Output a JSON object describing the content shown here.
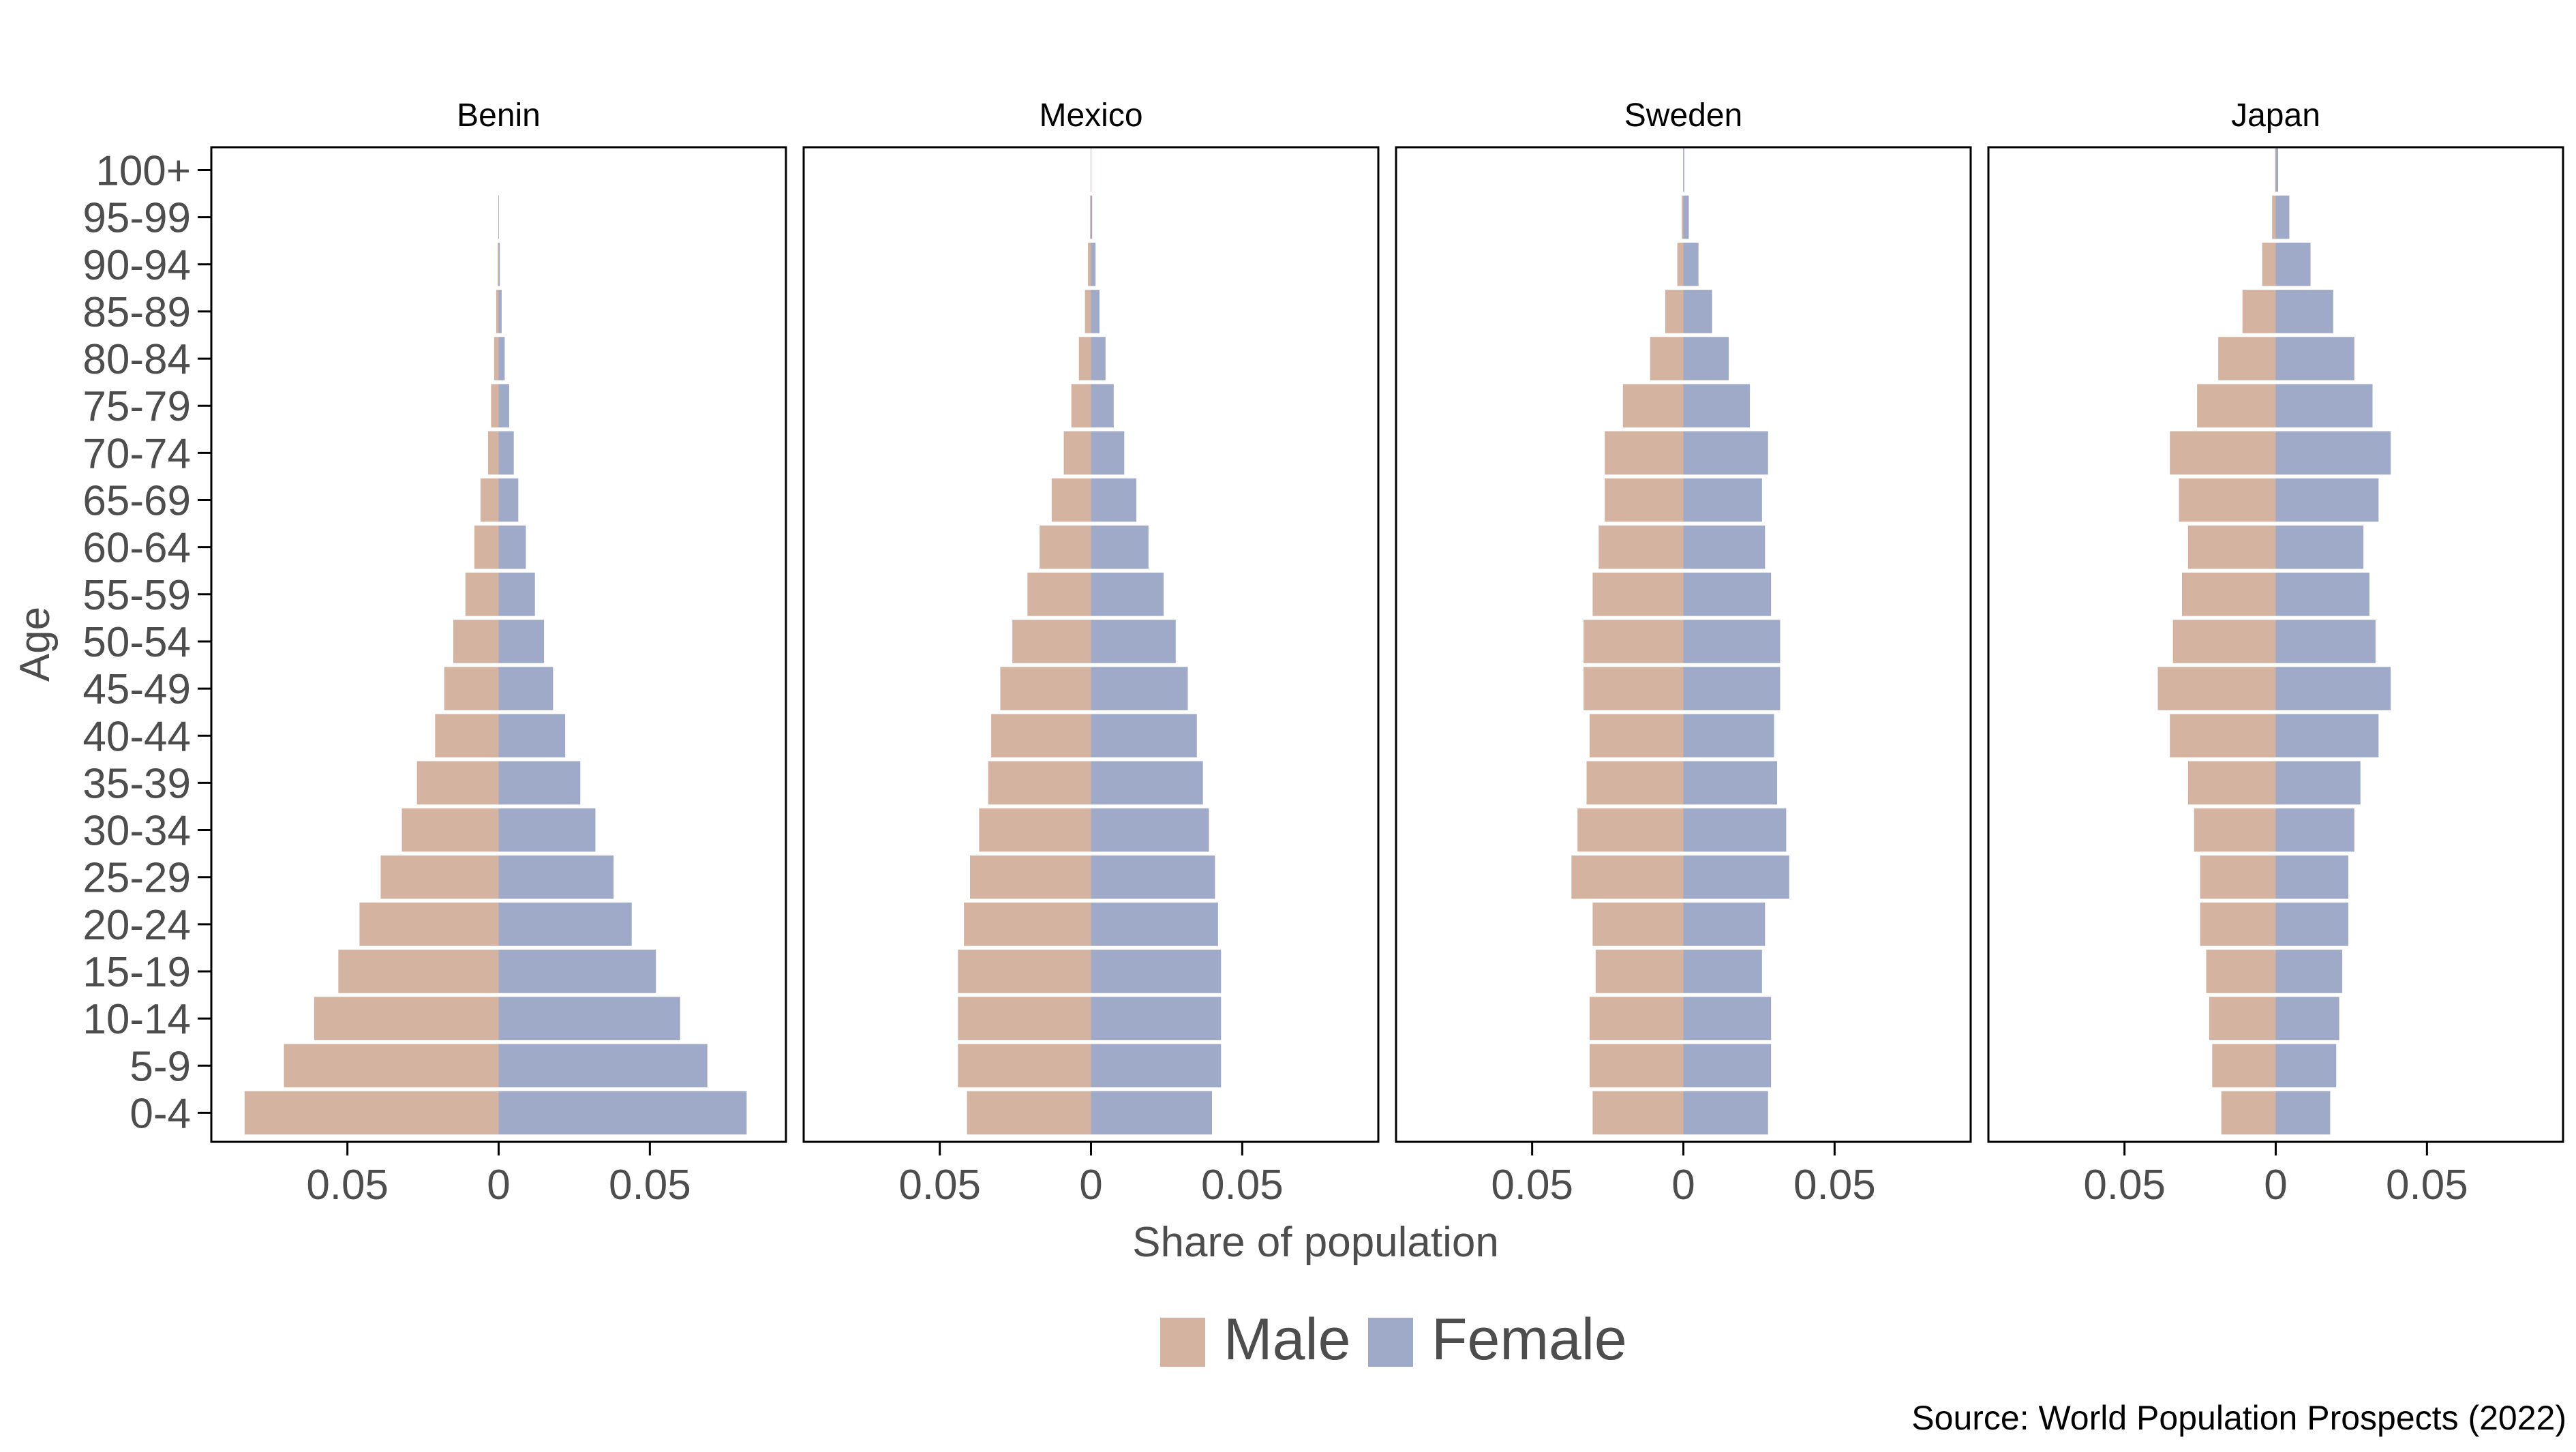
{
  "chart_data": {
    "type": "bar",
    "orientation": "horizontal",
    "colors": {
      "male": "#d4b3a0",
      "female": "#9eaac8",
      "axis": "#000000",
      "text": "#4d4d4d"
    },
    "age_groups": [
      "0-4",
      "5-9",
      "10-14",
      "15-19",
      "20-24",
      "25-29",
      "30-34",
      "35-39",
      "40-44",
      "45-49",
      "50-54",
      "55-59",
      "60-64",
      "65-69",
      "70-74",
      "75-79",
      "80-84",
      "85-89",
      "90-94",
      "95-99",
      "100+"
    ],
    "xlabel": "Share of population",
    "ylabel": "Age",
    "xlim": [
      -0.095,
      0.095
    ],
    "x_ticks": [
      -0.05,
      0,
      0.05
    ],
    "x_tick_labels": [
      "0.05",
      "0",
      "0.05"
    ],
    "legend": {
      "placement": "bottom",
      "entries": [
        "Male",
        "Female"
      ]
    },
    "source": "Source: World Population Prospects (2022)",
    "panels": [
      {
        "title": "Benin",
        "male": [
          0.084,
          0.071,
          0.061,
          0.053,
          0.046,
          0.039,
          0.032,
          0.027,
          0.021,
          0.018,
          0.015,
          0.011,
          0.008,
          0.006,
          0.0035,
          0.0025,
          0.0015,
          0.0008,
          0.0003,
          0.0001,
          0.0
        ],
        "female": [
          0.082,
          0.069,
          0.06,
          0.052,
          0.044,
          0.038,
          0.032,
          0.027,
          0.022,
          0.018,
          0.015,
          0.012,
          0.009,
          0.0065,
          0.005,
          0.0035,
          0.002,
          0.001,
          0.0004,
          0.0001,
          0.0
        ]
      },
      {
        "title": "Mexico",
        "male": [
          0.041,
          0.044,
          0.044,
          0.044,
          0.042,
          0.04,
          0.037,
          0.034,
          0.033,
          0.03,
          0.026,
          0.021,
          0.017,
          0.013,
          0.009,
          0.0065,
          0.004,
          0.002,
          0.001,
          0.0003,
          0.0001
        ],
        "female": [
          0.04,
          0.043,
          0.043,
          0.043,
          0.042,
          0.041,
          0.039,
          0.037,
          0.035,
          0.032,
          0.028,
          0.024,
          0.019,
          0.015,
          0.011,
          0.0075,
          0.0048,
          0.0028,
          0.0015,
          0.0004,
          0.0001
        ]
      },
      {
        "title": "Sweden",
        "male": [
          0.03,
          0.031,
          0.031,
          0.029,
          0.03,
          0.037,
          0.035,
          0.032,
          0.031,
          0.033,
          0.033,
          0.03,
          0.028,
          0.026,
          0.026,
          0.02,
          0.011,
          0.006,
          0.002,
          0.0005,
          0.0001
        ],
        "female": [
          0.028,
          0.029,
          0.029,
          0.026,
          0.027,
          0.035,
          0.034,
          0.031,
          0.03,
          0.032,
          0.032,
          0.029,
          0.027,
          0.026,
          0.028,
          0.022,
          0.015,
          0.0095,
          0.005,
          0.0018,
          0.0003
        ]
      },
      {
        "title": "Japan",
        "male": [
          0.018,
          0.021,
          0.022,
          0.023,
          0.025,
          0.025,
          0.027,
          0.029,
          0.035,
          0.039,
          0.034,
          0.031,
          0.029,
          0.032,
          0.035,
          0.026,
          0.019,
          0.011,
          0.0045,
          0.0012,
          0.0002
        ],
        "female": [
          0.018,
          0.02,
          0.021,
          0.022,
          0.024,
          0.024,
          0.026,
          0.028,
          0.034,
          0.038,
          0.033,
          0.031,
          0.029,
          0.034,
          0.038,
          0.032,
          0.026,
          0.019,
          0.0115,
          0.0045,
          0.0008
        ]
      }
    ]
  }
}
